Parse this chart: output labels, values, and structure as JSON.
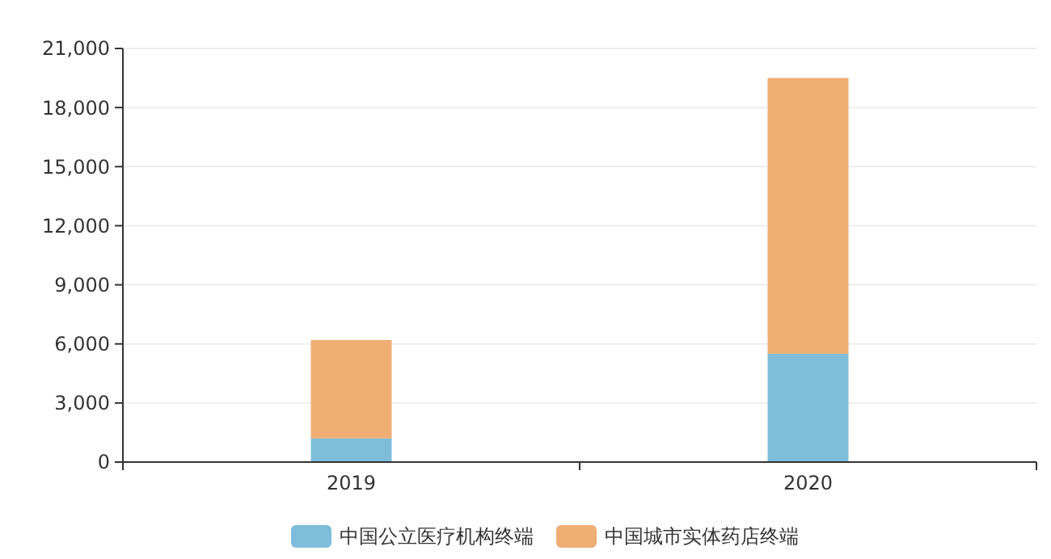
{
  "chart_data": {
    "type": "bar",
    "stacked": true,
    "categories": [
      "2019",
      "2020"
    ],
    "series": [
      {
        "name": "中国公立医疗机构终端",
        "color": "#7ebedb",
        "values": [
          1200,
          5500
        ]
      },
      {
        "name": "中国城市实体药店终端",
        "color": "#eeae74",
        "values": [
          5000,
          14000
        ]
      }
    ],
    "ylim": [
      0,
      21000
    ],
    "yticks": [
      {
        "value": 0,
        "label": "0"
      },
      {
        "value": 3000,
        "label": "3,000"
      },
      {
        "value": 6000,
        "label": "6,000"
      },
      {
        "value": 9000,
        "label": "9,000"
      },
      {
        "value": 12000,
        "label": "12,000"
      },
      {
        "value": 15000,
        "label": "15,000"
      },
      {
        "value": 18000,
        "label": "18,000"
      },
      {
        "value": 21000,
        "label": "21,000"
      }
    ],
    "grid": "y",
    "legend": "bottom"
  }
}
